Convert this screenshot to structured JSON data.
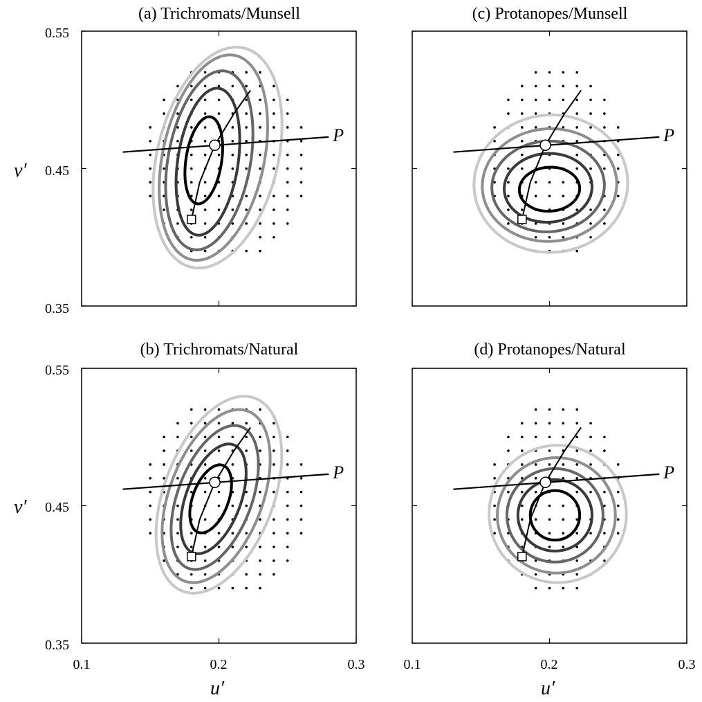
{
  "figure": {
    "shared": {
      "xlabel": "u′",
      "ylabel": "v′",
      "x_ticks": [
        "0.1",
        "0.2",
        "0.3"
      ],
      "y_ticks": [
        "0.35",
        "0.45",
        "0.55"
      ],
      "xlim": [
        0.1,
        0.3
      ],
      "ylim": [
        0.35,
        0.55
      ],
      "line_label": "P",
      "contour_colors": [
        "#000000",
        "#3a3a3a",
        "#666666",
        "#8e8e8e",
        "#c8c8c8"
      ]
    }
  },
  "chart_data": [
    {
      "type": "line",
      "title": "(a) Trichromats/Munsell",
      "xlabel": "u′",
      "ylabel": "v′",
      "xlim": [
        0.1,
        0.3
      ],
      "ylim": [
        0.35,
        0.55
      ],
      "P_line": [
        [
          0.13,
          0.462
        ],
        [
          0.28,
          0.473
        ]
      ],
      "daylight_locus": [
        [
          0.18,
          0.413
        ],
        [
          0.186,
          0.44
        ],
        [
          0.197,
          0.467
        ],
        [
          0.211,
          0.49
        ],
        [
          0.223,
          0.507
        ]
      ],
      "circle_marker": [
        0.197,
        0.467
      ],
      "square_marker": [
        0.18,
        0.413
      ],
      "sample_grid": {
        "u_min": 0.15,
        "u_max": 0.26,
        "v_min": 0.39,
        "v_max": 0.52,
        "step": 0.01
      },
      "contours": [
        {
          "c": [
            0.189,
            0.456
          ],
          "r": [
            0.013,
            0.032
          ],
          "s": -0.05
        },
        {
          "c": [
            0.192,
            0.455
          ],
          "r": [
            0.022,
            0.054
          ],
          "s": -0.05
        },
        {
          "c": [
            0.193,
            0.456
          ],
          "r": [
            0.03,
            0.066
          ],
          "s": -0.06
        },
        {
          "c": [
            0.196,
            0.458
          ],
          "r": [
            0.037,
            0.076
          ],
          "s": -0.07
        },
        {
          "c": [
            0.199,
            0.458
          ],
          "r": [
            0.044,
            0.082
          ],
          "s": -0.08
        }
      ]
    },
    {
      "type": "line",
      "title": "(b) Trichromats/Natural",
      "xlabel": "u′",
      "ylabel": "v′",
      "xlim": [
        0.1,
        0.3
      ],
      "ylim": [
        0.35,
        0.55
      ],
      "P_line": [
        [
          0.13,
          0.462
        ],
        [
          0.28,
          0.473
        ]
      ],
      "daylight_locus": [
        [
          0.18,
          0.413
        ],
        [
          0.186,
          0.44
        ],
        [
          0.197,
          0.467
        ],
        [
          0.211,
          0.49
        ],
        [
          0.223,
          0.507
        ]
      ],
      "circle_marker": [
        0.197,
        0.467
      ],
      "square_marker": [
        0.18,
        0.413
      ],
      "sample_grid": {
        "u_min": 0.15,
        "u_max": 0.26,
        "v_min": 0.39,
        "v_max": 0.52,
        "step": 0.01
      },
      "contours": [
        {
          "c": [
            0.194,
            0.455
          ],
          "r": [
            0.013,
            0.026
          ],
          "s": -0.12
        },
        {
          "c": [
            0.196,
            0.455
          ],
          "r": [
            0.02,
            0.042
          ],
          "s": -0.12
        },
        {
          "c": [
            0.197,
            0.456
          ],
          "r": [
            0.027,
            0.055
          ],
          "s": -0.12
        },
        {
          "c": [
            0.198,
            0.457
          ],
          "r": [
            0.034,
            0.066
          ],
          "s": -0.12
        },
        {
          "c": [
            0.2,
            0.458
          ],
          "r": [
            0.04,
            0.075
          ],
          "s": -0.12
        }
      ]
    },
    {
      "type": "line",
      "title": "(c) Protanopes/Munsell",
      "xlabel": "u′",
      "ylabel": "v′",
      "xlim": [
        0.1,
        0.3
      ],
      "ylim": [
        0.35,
        0.55
      ],
      "P_line": [
        [
          0.13,
          0.462
        ],
        [
          0.28,
          0.473
        ]
      ],
      "daylight_locus": [
        [
          0.18,
          0.413
        ],
        [
          0.186,
          0.44
        ],
        [
          0.197,
          0.467
        ],
        [
          0.211,
          0.49
        ],
        [
          0.223,
          0.507
        ]
      ],
      "circle_marker": [
        0.197,
        0.467
      ],
      "square_marker": [
        0.18,
        0.413
      ],
      "sample_grid": {
        "u_min": 0.16,
        "u_max": 0.25,
        "v_min": 0.39,
        "v_max": 0.52,
        "step": 0.01
      },
      "contours": [
        {
          "c": [
            0.2,
            0.435
          ],
          "r": [
            0.022,
            0.016
          ],
          "s": 0.02
        },
        {
          "c": [
            0.199,
            0.436
          ],
          "r": [
            0.032,
            0.025
          ],
          "s": 0.02
        },
        {
          "c": [
            0.199,
            0.437
          ],
          "r": [
            0.041,
            0.033
          ],
          "s": 0.02
        },
        {
          "c": [
            0.2,
            0.438
          ],
          "r": [
            0.049,
            0.041
          ],
          "s": 0.02
        },
        {
          "c": [
            0.201,
            0.439
          ],
          "r": [
            0.056,
            0.05
          ],
          "s": 0.02
        }
      ]
    },
    {
      "type": "line",
      "title": "(d) Protanopes/Natural",
      "xlabel": "u′",
      "ylabel": "v′",
      "xlim": [
        0.1,
        0.3
      ],
      "ylim": [
        0.35,
        0.55
      ],
      "P_line": [
        [
          0.13,
          0.462
        ],
        [
          0.28,
          0.473
        ]
      ],
      "daylight_locus": [
        [
          0.18,
          0.413
        ],
        [
          0.186,
          0.44
        ],
        [
          0.197,
          0.467
        ],
        [
          0.211,
          0.49
        ],
        [
          0.223,
          0.507
        ]
      ],
      "circle_marker": [
        0.197,
        0.467
      ],
      "square_marker": [
        0.18,
        0.413
      ],
      "sample_grid": {
        "u_min": 0.16,
        "u_max": 0.25,
        "v_min": 0.39,
        "v_max": 0.52,
        "step": 0.01
      },
      "contours": [
        {
          "c": [
            0.204,
            0.443
          ],
          "r": [
            0.018,
            0.018
          ],
          "s": 0.0
        },
        {
          "c": [
            0.204,
            0.443
          ],
          "r": [
            0.027,
            0.026
          ],
          "s": 0.0
        },
        {
          "c": [
            0.204,
            0.443
          ],
          "r": [
            0.035,
            0.034
          ],
          "s": 0.0
        },
        {
          "c": [
            0.205,
            0.443
          ],
          "r": [
            0.043,
            0.042
          ],
          "s": 0.0
        },
        {
          "c": [
            0.206,
            0.444
          ],
          "r": [
            0.05,
            0.05
          ],
          "s": 0.0
        }
      ]
    }
  ]
}
